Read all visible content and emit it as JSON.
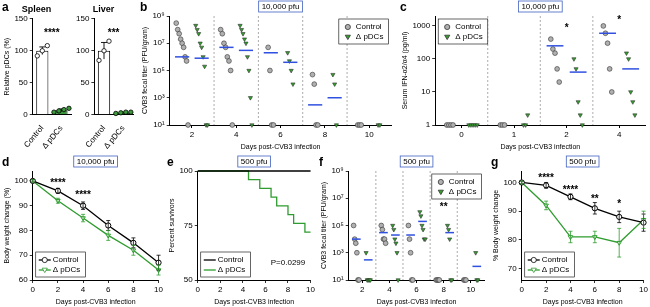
{
  "chart_data": [
    {
      "panel": "a",
      "type": "bar",
      "title": "Spleen",
      "y_label": "Relative pDCs (%)",
      "categories": [
        "Control",
        "Δ pDCs"
      ],
      "values": [
        100,
        7
      ],
      "errors": [
        6,
        2
      ],
      "points": [
        [
          92,
          100,
          108
        ],
        [
          4,
          6,
          8,
          10
        ]
      ],
      "colors": [
        "#ffffff",
        "#3a9b3a"
      ],
      "ylim": [
        0,
        150
      ],
      "yticks": [
        0,
        50,
        100,
        150
      ],
      "grid": false,
      "annotations": [
        {
          "text": "****",
          "y": 130
        }
      ]
    },
    {
      "type": "bar",
      "title": "Liver",
      "categories": [
        "Control",
        "Δ pDCs"
      ],
      "values": [
        100,
        3
      ],
      "errors": [
        13,
        1
      ],
      "points": [
        [
          85,
          100,
          115
        ],
        [
          2,
          3,
          4,
          4
        ]
      ],
      "colors": [
        "#ffffff",
        "#3a9b3a"
      ],
      "ylim": [
        0,
        150
      ],
      "yticks": [
        0,
        50,
        100,
        150
      ],
      "grid": false,
      "annotations": [
        {
          "text": "***",
          "y": 130
        }
      ]
    },
    {
      "panel": "b",
      "type": "scatter",
      "subtitle": "10,000 pfu",
      "x_label": "Days post-CVB3 infection",
      "y_label": "CVB3 fecal titer (PFU/gram)",
      "categories": [
        "2",
        "4",
        "6",
        "8",
        "10"
      ],
      "log": "y",
      "ylim": [
        10,
        1000000000
      ],
      "yticks": [
        {
          "value": 10,
          "label": "10¹"
        },
        {
          "value": 1000,
          "label": "10³"
        },
        {
          "value": 100000,
          "label": "10⁵"
        },
        {
          "value": 10000000,
          "label": "10⁷"
        },
        {
          "value": 1000000000,
          "label": "10⁹"
        }
      ],
      "grid": false,
      "legend": "upper right",
      "series": [
        {
          "name": "Control",
          "color": "#b0b0b0",
          "marker": "circle",
          "values": [
            [
              300000000,
              100000000,
              50000000,
              20000000,
              10000000,
              5000000,
              1000000,
              500000,
              10
            ],
            [
              100000000,
              50000000,
              10000000,
              5000000,
              1000000,
              500000,
              100000,
              10
            ],
            [
              5000000,
              100000,
              10,
              10
            ],
            [
              50000,
              10000,
              10,
              10
            ],
            [
              10,
              10,
              10
            ]
          ],
          "means": [
            1000000,
            5000000,
            2000000,
            300,
            null
          ]
        },
        {
          "name": "Δ pDCs",
          "color": "#33a02c",
          "marker": "triangle-down",
          "values": [
            [
              200000000,
              100000000,
              50000000,
              10000000,
              5000000,
              1000000,
              200000,
              10,
              10
            ],
            [
              200000000,
              100000000,
              50000000,
              20000000,
              10000000,
              1000000,
              100000,
              1000,
              10
            ],
            [
              2000000,
              500000,
              100000,
              10000
            ],
            [
              50000,
              10000,
              10
            ],
            [
              10,
              10
            ]
          ],
          "means": [
            800000,
            3000000,
            400000,
            1000,
            null
          ]
        }
      ]
    },
    {
      "panel": "c",
      "type": "scatter",
      "subtitle": "10,000 pfu",
      "x_label": "Days post-CVB3 infection",
      "y_label": "Serum IFN-α2/α4 (pg/ml)",
      "categories": [
        "0",
        "1",
        "2",
        "4"
      ],
      "log": "y",
      "ylim": [
        1,
        2000
      ],
      "yticks": [
        1,
        10,
        100,
        1000
      ],
      "grid": false,
      "legend": "upper left",
      "series": [
        {
          "name": "Control",
          "color": "#b0b0b0",
          "marker": "circle",
          "values": [
            [
              1,
              1,
              1,
              1
            ],
            [
              1,
              1,
              1
            ],
            [
              400,
              200,
              150,
              50,
              20
            ],
            [
              1000,
              600,
              300,
              50,
              10
            ]
          ],
          "means": [
            null,
            null,
            250,
            600
          ]
        },
        {
          "name": "Δ pDCs",
          "color": "#33a02c",
          "marker": "triangle-down",
          "values": [
            [
              1,
              1,
              1,
              1,
              1
            ],
            [
              1,
              1,
              2
            ],
            [
              100,
              50,
              5,
              2,
              1
            ],
            [
              150,
              100,
              10,
              5,
              2
            ]
          ],
          "means": [
            null,
            null,
            40,
            50
          ]
        }
      ],
      "annotations": [
        {
          "text": "*",
          "x": "2",
          "y": 1000
        },
        {
          "text": "*",
          "x": "4",
          "y": 1700
        }
      ]
    },
    {
      "panel": "d",
      "type": "line",
      "subtitle": "10,000 pfu",
      "x_label": "Days post-CVB3 infection",
      "y_label": "Body weight change (%)",
      "x": [
        0,
        2,
        4,
        6,
        8,
        10
      ],
      "xlim": [
        0,
        10
      ],
      "xticks": [
        0,
        2,
        4,
        6,
        8,
        10
      ],
      "ylim": [
        60,
        104
      ],
      "yticks": [
        60,
        70,
        80,
        90,
        100
      ],
      "grid": false,
      "legend": "lower left",
      "series": [
        {
          "name": "Control",
          "color": "#000000",
          "marker": "open-circle",
          "values": [
            100,
            96,
            90,
            82,
            75,
            67
          ],
          "errors": [
            0.5,
            1,
            1.5,
            2,
            2,
            3
          ]
        },
        {
          "name": "Δ pDCs",
          "color": "#2e9c2e",
          "marker": "open-triangle-down",
          "values": [
            100,
            92,
            85,
            78,
            72,
            64
          ],
          "errors": [
            0.5,
            1,
            1.5,
            2,
            2,
            2
          ]
        }
      ],
      "annotations": [
        {
          "text": "****",
          "x": 2,
          "y": 100
        },
        {
          "text": "****",
          "x": 4,
          "y": 95
        }
      ]
    },
    {
      "panel": "e",
      "type": "line",
      "subtitle": "500 pfu",
      "x_label": "Days post-CVB3 infection",
      "y_label": "Percent survivors",
      "xlim": [
        0,
        10
      ],
      "xticks": [
        0,
        2,
        4,
        6,
        8,
        10
      ],
      "ylim": [
        50,
        100
      ],
      "yticks": [
        50,
        75,
        100
      ],
      "grid": false,
      "legend": "lower left",
      "series": [
        {
          "name": "Control",
          "color": "#000000",
          "line_style": "step",
          "x": [
            0,
            10
          ],
          "values": [
            100,
            100
          ]
        },
        {
          "name": "Δ pDCs",
          "color": "#2e9c2e",
          "line_style": "step",
          "x": [
            0,
            4.5,
            5.5,
            6.5,
            7,
            8,
            8.5,
            9.5,
            10
          ],
          "values": [
            100,
            96,
            92,
            88,
            84,
            80,
            76,
            72,
            72
          ]
        }
      ],
      "annotations": [
        {
          "text": "P=0.0299",
          "x": 8,
          "y": 58
        }
      ]
    },
    {
      "panel": "f",
      "type": "scatter",
      "subtitle": "500 pfu",
      "x_label": "Days post-CVB3 infection",
      "y_label": "CVB3 fecal titer (PFU/gram)",
      "categories": [
        "2",
        "4",
        "6",
        "8",
        "10"
      ],
      "log": "y",
      "ylim": [
        10,
        1000000000
      ],
      "yticks": [
        {
          "value": 10,
          "label": "10¹"
        },
        {
          "value": 1000,
          "label": "10³"
        },
        {
          "value": 100000,
          "label": "10⁵"
        },
        {
          "value": 10000000,
          "label": "10⁷"
        },
        {
          "value": 1000000000,
          "label": "10⁹"
        }
      ],
      "grid": false,
      "legend": "upper right",
      "series": [
        {
          "name": "Control",
          "color": "#b0b0b0",
          "marker": "circle",
          "values": [
            [
              100000,
              10000,
              5000,
              1000,
              10,
              10
            ],
            [
              100000,
              50000,
              10000,
              10000,
              5000
            ],
            [
              100000,
              10000,
              1000,
              10,
              10
            ],
            [
              10,
              10,
              10,
              10
            ],
            [
              10,
              10,
              10
            ]
          ],
          "means": [
            10000,
            30000,
            20000,
            null,
            null
          ]
        },
        {
          "name": "Δ pDCs",
          "color": "#33a02c",
          "marker": "triangle-down",
          "values": [
            [
              1000,
              10,
              10,
              10,
              10
            ],
            [
              100000,
              50000,
              10000,
              5000,
              1000,
              10
            ],
            [
              1000000,
              500000,
              100000,
              50000,
              10000,
              10000
            ],
            [
              100000,
              50000,
              10000,
              10,
              10
            ],
            [
              1000,
              10,
              10
            ]
          ],
          "means": [
            300,
            20000,
            200000,
            30000,
            100
          ]
        }
      ],
      "annotations": [
        {
          "text": "**",
          "x": "8",
          "y": 3000000
        }
      ]
    },
    {
      "panel": "g",
      "type": "line",
      "subtitle": "500 pfu",
      "x_label": "Days post-CVB3 infection",
      "y_label": "% Body weight change",
      "x": [
        0,
        2,
        4,
        6,
        8,
        10
      ],
      "xlim": [
        0,
        10
      ],
      "xticks": [
        0,
        2,
        4,
        6,
        8,
        10
      ],
      "ylim": [
        66,
        104
      ],
      "yticks": [
        70,
        80,
        90,
        100
      ],
      "grid": false,
      "legend": "lower left",
      "series": [
        {
          "name": "Control",
          "color": "#000000",
          "marker": "open-circle",
          "values": [
            100,
            99,
            95,
            91,
            88,
            86
          ],
          "errors": [
            0.5,
            1,
            1,
            2,
            2,
            3
          ]
        },
        {
          "name": "Δ pDCs",
          "color": "#2e9c2e",
          "marker": "open-triangle-down",
          "values": [
            100,
            92,
            81,
            81,
            79,
            87
          ],
          "errors": [
            0.5,
            1.5,
            2,
            2,
            5,
            3
          ]
        }
      ],
      "annotations": [
        {
          "text": "****",
          "x": 2,
          "y": 102
        },
        {
          "text": "****",
          "x": 4,
          "y": 98
        },
        {
          "text": "**",
          "x": 6,
          "y": 95
        },
        {
          "text": "*",
          "x": 8,
          "y": 93
        }
      ]
    }
  ]
}
